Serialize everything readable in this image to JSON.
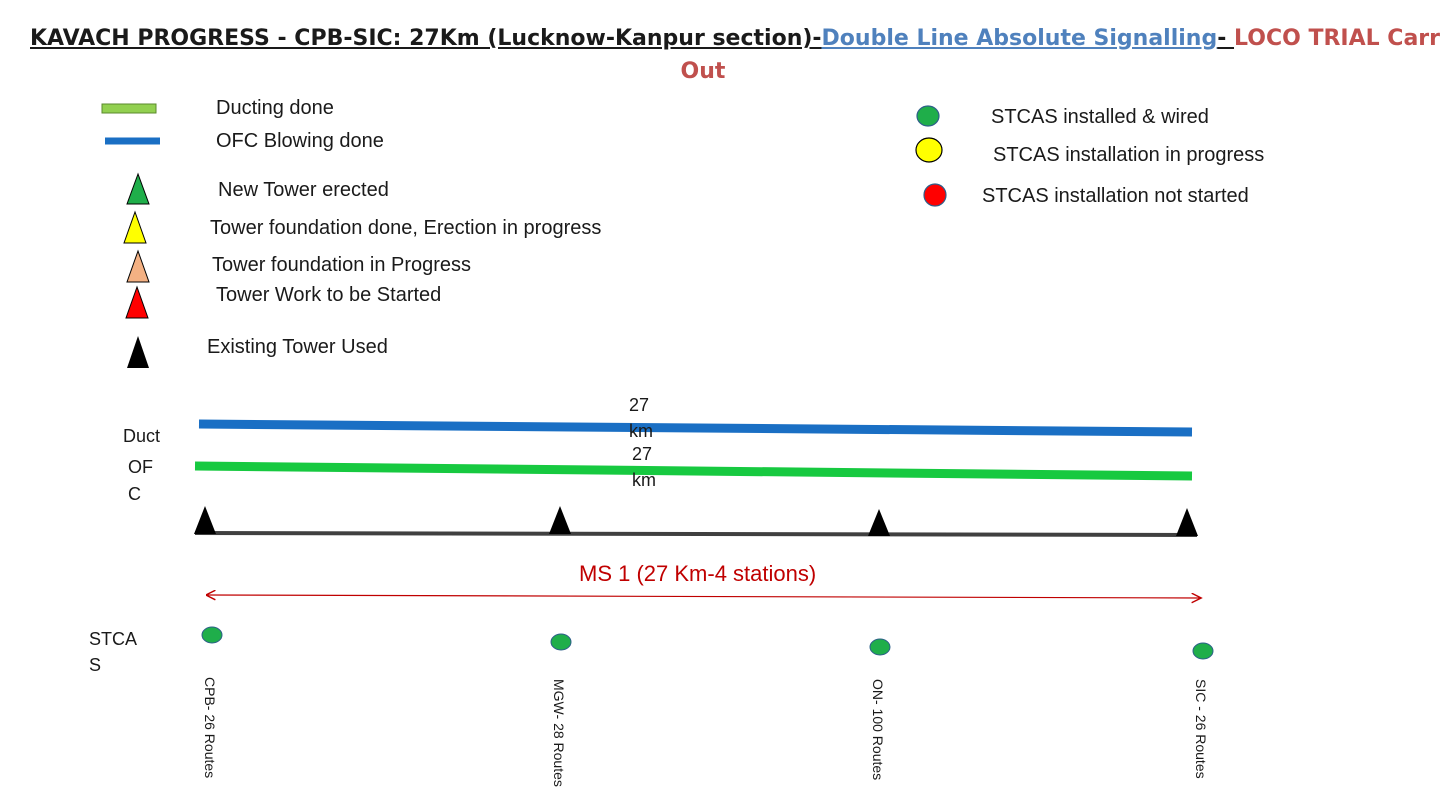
{
  "title": {
    "part1": "KAVACH  PROGRESS - CPB-SIC: 27Km (Lucknow-Kanpur section)-",
    "part2": "Double Line Absolute Signalling",
    "part3": "- ",
    "part4": "LOCO TRIAL Carried",
    "line2": "Out",
    "color_blue": "#4f81bd",
    "color_red": "#c0504d"
  },
  "legend_left": {
    "ducting": "Ducting done",
    "ofc": "OFC Blowing done",
    "new_tower": "New Tower erected",
    "foundation_done": "Tower foundation done, Erection in progress",
    "foundation_progress": "Tower foundation in Progress",
    "to_be_started": "Tower Work to be Started",
    "existing": "Existing Tower Used"
  },
  "legend_right": {
    "installed": "STCAS installed & wired",
    "in_progress": "STCAS installation in progress",
    "not_started": "STCAS installation not started"
  },
  "track": {
    "duct_label": "Duct",
    "ofc_label_1": "OF",
    "ofc_label_2": "C",
    "duct_km_1": "27",
    "duct_km_2": "km",
    "ofc_km_1": "27",
    "ofc_km_2": "km",
    "ms_label": "MS 1 (27 Km-4 stations)",
    "stcas_label_1": "STCA",
    "stcas_label_2": "S"
  },
  "stations": [
    {
      "label": "CPB- 26 Routes"
    },
    {
      "label": "MGW- 28 Routes"
    },
    {
      "label": "ON- 100 Routes"
    },
    {
      "label": "SIC - 26 Routes"
    }
  ],
  "colors": {
    "green_line": "#17c940",
    "blue_line": "#1a6fc4",
    "stcas_green": "#1fae4a",
    "ms_red": "#c00000"
  }
}
